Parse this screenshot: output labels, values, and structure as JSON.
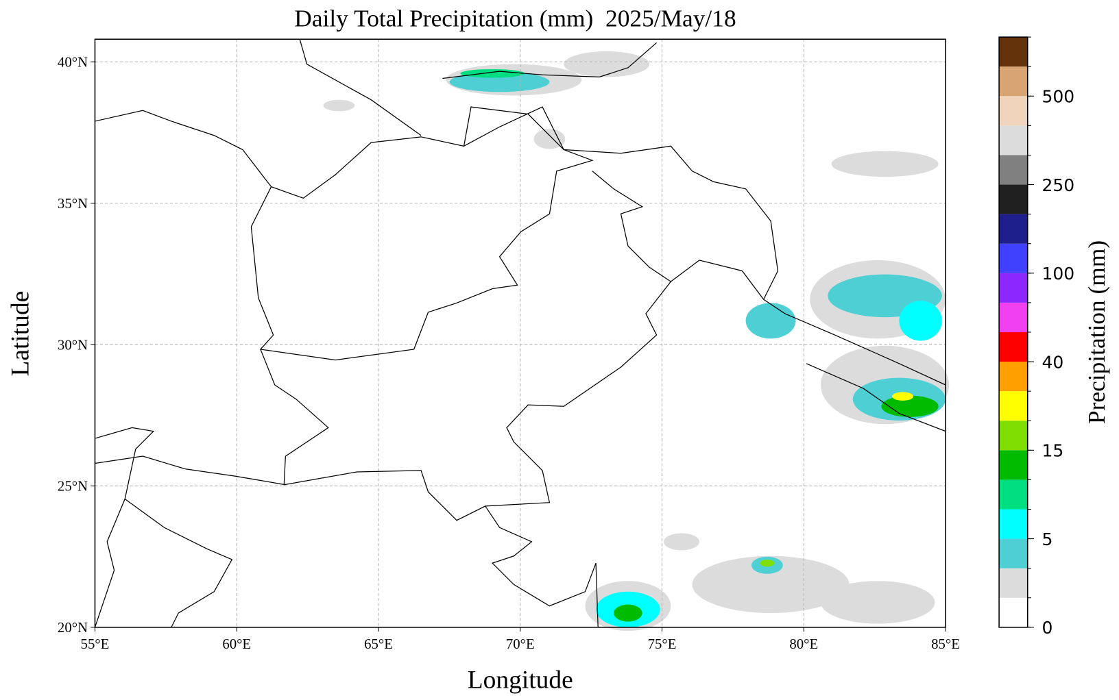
{
  "map": {
    "type": "precipitation-map",
    "title": "Daily Total Precipitation (mm)  2025/May/18",
    "xlabel": "Longitude",
    "ylabel": "Latitude",
    "xlim": [
      55,
      85
    ],
    "ylim": [
      20,
      40.8
    ],
    "xticks": [
      {
        "value": 55,
        "label": "55°E"
      },
      {
        "value": 60,
        "label": "60°E"
      },
      {
        "value": 65,
        "label": "65°E"
      },
      {
        "value": 70,
        "label": "70°E"
      },
      {
        "value": 75,
        "label": "75°E"
      },
      {
        "value": 80,
        "label": "80°E"
      },
      {
        "value": 85,
        "label": "85°E"
      }
    ],
    "yticks": [
      {
        "value": 20,
        "label": "20°N"
      },
      {
        "value": 25,
        "label": "25°N"
      },
      {
        "value": 30,
        "label": "30°N"
      },
      {
        "value": 35,
        "label": "35°N"
      },
      {
        "value": 40,
        "label": "40°N"
      }
    ],
    "grid": true,
    "colorbar": {
      "label": "Precipitation (mm)",
      "colors": [
        "#ffffff",
        "#dcdcdc",
        "#4ecfd4",
        "#00ffff",
        "#00de82",
        "#00bb00",
        "#80dd00",
        "#ffff00",
        "#ffa000",
        "#ff0000",
        "#f040f0",
        "#8c28ff",
        "#4040ff",
        "#1e1e8c",
        "#202020",
        "#808080",
        "#dcdcdc",
        "#f0d4bc",
        "#d8a474",
        "#64320a"
      ],
      "levels": [
        0,
        1,
        3,
        5,
        7,
        10,
        15,
        20,
        30,
        40,
        50,
        70,
        100,
        150,
        200,
        250,
        300,
        400,
        500,
        600,
        700
      ],
      "ticks": [
        0,
        5,
        15,
        40,
        100,
        250,
        500
      ]
    }
  }
}
